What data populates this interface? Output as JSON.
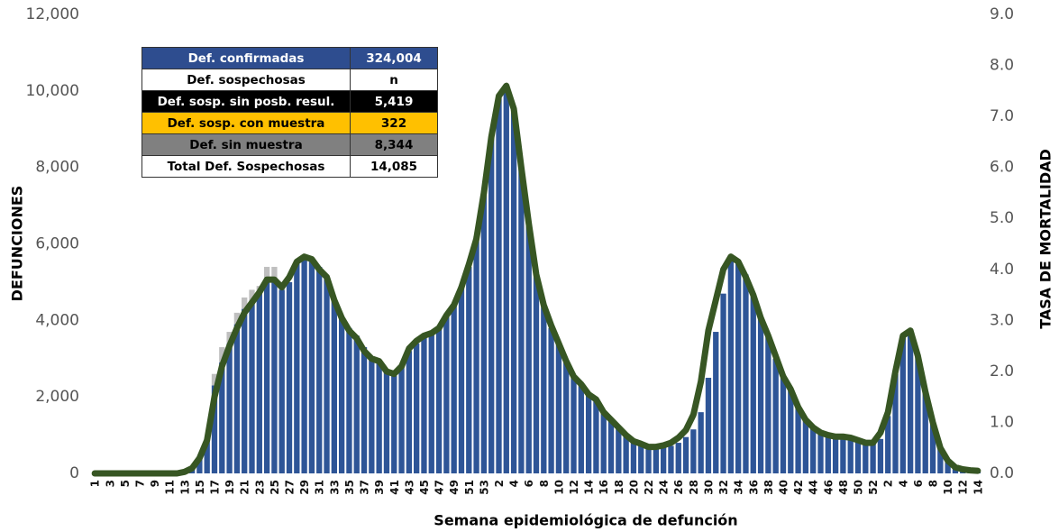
{
  "chart_data": {
    "type": "bar",
    "x_label": "Semana epidemiológica de defunción",
    "y_label": "DEFUNCIONES",
    "y2_label": "TASA DE MORTALIDAD",
    "categories": [
      "1",
      null,
      "3",
      null,
      "5",
      null,
      "7",
      null,
      "9",
      null,
      "11",
      null,
      "13",
      null,
      "15",
      null,
      "17",
      null,
      "19",
      null,
      "21",
      null,
      "23",
      null,
      "25",
      null,
      "27",
      null,
      "29",
      null,
      "31",
      null,
      "33",
      null,
      "35",
      null,
      "37",
      null,
      "39",
      null,
      "41",
      null,
      "43",
      null,
      "45",
      null,
      "47",
      null,
      "49",
      null,
      "51",
      null,
      "53",
      null,
      "2",
      null,
      "4",
      null,
      "6",
      null,
      "8",
      null,
      "10",
      null,
      "12",
      null,
      "14",
      null,
      "16",
      null,
      "18",
      null,
      "20",
      null,
      "22",
      null,
      "24",
      null,
      "26",
      null,
      "28",
      null,
      "30",
      null,
      "32",
      null,
      "34",
      null,
      "36",
      null,
      "38",
      null,
      "40",
      null,
      "42",
      null,
      "44",
      null,
      "46",
      null,
      "48",
      null,
      "50",
      null,
      "52",
      null,
      "2",
      null,
      "4",
      null,
      "6",
      null,
      "8",
      null,
      "10",
      null,
      "12",
      null,
      "14"
    ],
    "series": [
      {
        "color": "#2e5597",
        "values": [
          0,
          0,
          0,
          0,
          0,
          0,
          0,
          0,
          0,
          0,
          0,
          0,
          50,
          150,
          400,
          900,
          2300,
          2900,
          3400,
          3900,
          4300,
          4500,
          4700,
          5000,
          5000,
          4800,
          5000,
          5500,
          5600,
          5600,
          5400,
          5100,
          4500,
          4100,
          3800,
          3600,
          3300,
          3000,
          2900,
          2650,
          2550,
          2800,
          3200,
          3400,
          3550,
          3650,
          3800,
          4100,
          4400,
          4900,
          5400,
          6200,
          7300,
          8800,
          9800,
          10100,
          9500,
          8000,
          6500,
          5200,
          4400,
          3800,
          3400,
          2900,
          2500,
          2300,
          2100,
          1900,
          1600,
          1400,
          1200,
          1000,
          850,
          780,
          700,
          680,
          700,
          720,
          800,
          950,
          1150,
          1600,
          2500,
          3700,
          4700,
          5600,
          5500,
          5200,
          4700,
          4100,
          3600,
          3000,
          2500,
          2200,
          1750,
          1400,
          1200,
          1100,
          1000,
          950,
          950,
          950,
          900,
          850,
          800,
          900,
          1500,
          2600,
          3600,
          3700,
          3100,
          2100,
          1300,
          700,
          350,
          200,
          130,
          80,
          60
        ]
      },
      {
        "color": "#bfbfbf",
        "values": [
          0,
          0,
          0,
          0,
          0,
          0,
          0,
          0,
          0,
          0,
          0,
          0,
          0,
          0,
          0,
          0,
          300,
          400,
          300,
          300,
          300,
          300,
          200,
          400,
          400,
          200,
          0,
          0,
          0,
          0,
          0,
          0,
          0,
          0,
          0,
          0,
          0,
          0,
          0,
          0,
          0,
          0,
          0,
          0,
          0,
          0,
          0,
          0,
          0,
          0,
          0,
          0,
          0,
          0,
          0,
          0,
          0,
          0,
          0,
          0,
          0,
          0,
          0,
          0,
          0,
          0,
          0,
          0,
          0,
          0,
          0,
          0,
          0,
          0,
          0,
          0,
          0,
          0,
          0,
          0,
          0,
          0,
          0,
          0,
          0,
          0,
          0,
          0,
          0,
          0,
          0,
          0,
          0,
          0,
          0,
          0,
          0,
          0,
          0,
          0,
          0,
          0,
          0,
          0,
          0,
          0,
          0,
          0,
          0,
          0,
          0,
          0,
          0,
          0,
          0,
          0,
          0,
          0,
          0
        ]
      },
      {
        "color": "#375623",
        "type": "line",
        "axis": "y2",
        "values": [
          0,
          0,
          0,
          0,
          0,
          0,
          0,
          0,
          0,
          0,
          0,
          0,
          0.03,
          0.1,
          0.3,
          0.65,
          1.5,
          2.1,
          2.5,
          2.85,
          3.15,
          3.35,
          3.55,
          3.8,
          3.8,
          3.65,
          3.85,
          4.15,
          4.25,
          4.2,
          4.0,
          3.85,
          3.4,
          3.05,
          2.8,
          2.65,
          2.4,
          2.25,
          2.2,
          2.0,
          1.95,
          2.1,
          2.45,
          2.6,
          2.7,
          2.75,
          2.85,
          3.1,
          3.3,
          3.65,
          4.1,
          4.6,
          5.5,
          6.6,
          7.4,
          7.6,
          7.15,
          6.0,
          4.9,
          3.9,
          3.3,
          2.9,
          2.55,
          2.2,
          1.9,
          1.75,
          1.55,
          1.45,
          1.2,
          1.05,
          0.9,
          0.75,
          0.63,
          0.58,
          0.52,
          0.52,
          0.55,
          0.6,
          0.7,
          0.85,
          1.15,
          1.8,
          2.8,
          3.4,
          4.0,
          4.25,
          4.15,
          3.85,
          3.5,
          3.05,
          2.7,
          2.3,
          1.9,
          1.65,
          1.3,
          1.05,
          0.9,
          0.8,
          0.75,
          0.72,
          0.72,
          0.7,
          0.65,
          0.6,
          0.6,
          0.8,
          1.2,
          2.0,
          2.7,
          2.8,
          2.3,
          1.6,
          1.0,
          0.5,
          0.25,
          0.12,
          0.08,
          0.06,
          0.05
        ]
      }
    ],
    "ylim": [
      0,
      12000
    ],
    "yticks": [
      0,
      {
        "value": 2000,
        "label": "2,000"
      },
      {
        "value": 4000,
        "label": "4,000"
      },
      {
        "value": 6000,
        "label": "6,000"
      },
      {
        "value": 8000,
        "label": "8,000"
      },
      {
        "value": 10000,
        "label": "10,000"
      },
      {
        "value": 12000,
        "label": "12,000"
      }
    ],
    "y2lim": [
      0,
      9
    ],
    "y2ticks": [
      {
        "value": 0,
        "label": "0.0"
      },
      {
        "value": 1,
        "label": "1.0"
      },
      {
        "value": 2,
        "label": "2.0"
      },
      {
        "value": 3,
        "label": "3.0"
      },
      {
        "value": 4,
        "label": "4.0"
      },
      {
        "value": 5,
        "label": "5.0"
      },
      {
        "value": 6,
        "label": "6.0"
      },
      {
        "value": 7,
        "label": "7.0"
      },
      {
        "value": 8,
        "label": "8.0"
      },
      {
        "value": 9,
        "label": "9.0"
      }
    ],
    "grid": false,
    "table": {
      "rows": [
        [
          "Def. confirmadas",
          "324,004"
        ],
        [
          "Def. sospechosas",
          "n"
        ],
        [
          "Def. sosp. sin posb. resul.",
          "5,419"
        ],
        [
          "Def. sosp. con  muestra",
          "322"
        ],
        [
          "Def. sin muestra",
          "8,344"
        ],
        [
          "Total Def. Sospechosas",
          "14,085"
        ]
      ]
    }
  }
}
